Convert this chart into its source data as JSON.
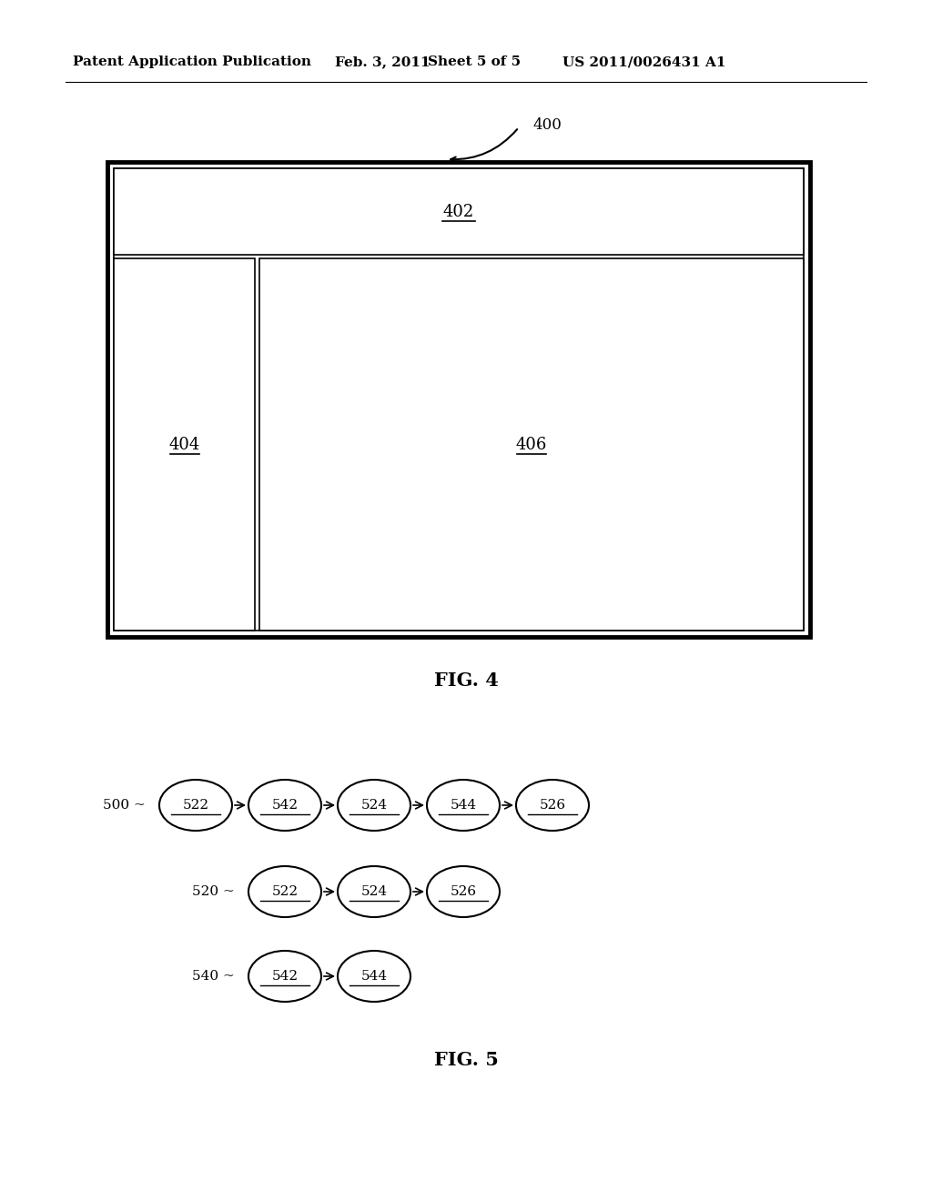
{
  "bg_color": "#ffffff",
  "header_text": "Patent Application Publication",
  "header_date": "Feb. 3, 2011",
  "header_sheet": "Sheet 5 of 5",
  "header_patent": "US 2011/0026431 A1",
  "fig4_label": "FIG. 4",
  "fig5_label": "FIG. 5",
  "fig4_ref": "400",
  "fig4_label_402": "402",
  "fig4_label_404": "404",
  "fig4_label_406": "406",
  "row1_label": "500 ~",
  "row1_nodes": [
    "522",
    "542",
    "524",
    "544",
    "526"
  ],
  "row2_label": "520 ~",
  "row2_nodes": [
    "522",
    "524",
    "526"
  ],
  "row3_label": "540 ~",
  "row3_nodes": [
    "542",
    "544"
  ],
  "font_size_header": 11,
  "font_size_label": 12,
  "font_size_node": 11,
  "font_size_fig": 14,
  "font_size_ref": 12
}
